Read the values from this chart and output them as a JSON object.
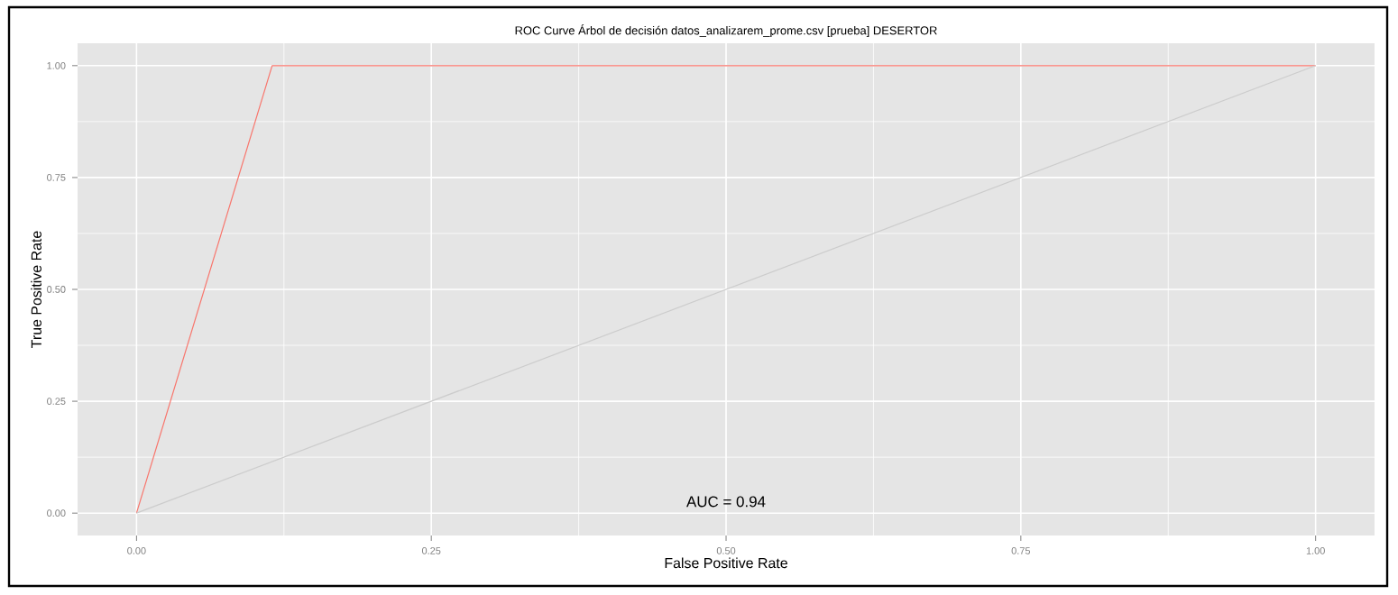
{
  "chart_data": {
    "type": "line",
    "title": "ROC Curve Árbol de decisión datos_analizarem_prome.csv [prueba] DESERTOR",
    "xlabel": "False Positive Rate",
    "ylabel": "True Positive Rate",
    "xlim": [
      -0.05,
      1.05
    ],
    "ylim": [
      -0.05,
      1.05
    ],
    "xticks": [
      {
        "value": 0,
        "label": "0.00"
      },
      {
        "value": 0.25,
        "label": "0.25"
      },
      {
        "value": 0.5,
        "label": "0.50"
      },
      {
        "value": 0.75,
        "label": "0.75"
      },
      {
        "value": 1,
        "label": "1.00"
      }
    ],
    "yticks": [
      {
        "value": 0,
        "label": "0.00"
      },
      {
        "value": 0.25,
        "label": "0.25"
      },
      {
        "value": 0.5,
        "label": "0.50"
      },
      {
        "value": 0.75,
        "label": "0.75"
      },
      {
        "value": 1,
        "label": "1.00"
      }
    ],
    "grid": true,
    "series": [
      {
        "color": "#f8766d",
        "x": [
          0,
          0.115,
          1
        ],
        "values": [
          0,
          1,
          1
        ]
      },
      {
        "color": "#cccccc",
        "x": [
          0,
          1
        ],
        "values": [
          0,
          1
        ]
      }
    ],
    "annotations": [
      "AUC = 0.94"
    ]
  }
}
